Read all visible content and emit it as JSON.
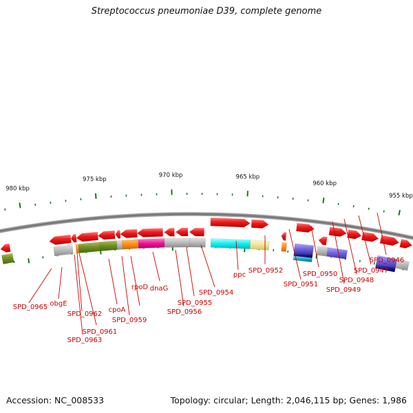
{
  "title": "Streptococcus pneumoniae D39, complete genome",
  "footer": {
    "accession": "Accession: NC_008533",
    "topology": "Topology: circular; Length: 2,046,115 bp; Genes: 1,986"
  },
  "colors": {
    "backbone": "#8a8a8a",
    "tick": "#1a7a1a",
    "gene": "#e41515",
    "label": "#cc0000",
    "leader": "#cc0000"
  },
  "ticks": [
    {
      "label": "980 kbp"
    },
    {
      "label": "975 kbp"
    },
    {
      "label": "970 kbp"
    },
    {
      "label": "965 kbp"
    },
    {
      "label": "960 kbp"
    },
    {
      "label": "955 kbp"
    }
  ],
  "gene_labels": [
    "SPD_0965",
    "obgE",
    "SPD_0962",
    "SPD_0963",
    "SPD_0961",
    "cpoA",
    "SPD_0959",
    "rpoD",
    "dnaG",
    "SPD_0956",
    "SPD_0955",
    "SPD_0954",
    "ppc",
    "SPD_0952",
    "SPD_0951",
    "SPD_0950",
    "SPD_0949",
    "SPD_0948",
    "SPD_0947",
    "SPD_0946"
  ]
}
